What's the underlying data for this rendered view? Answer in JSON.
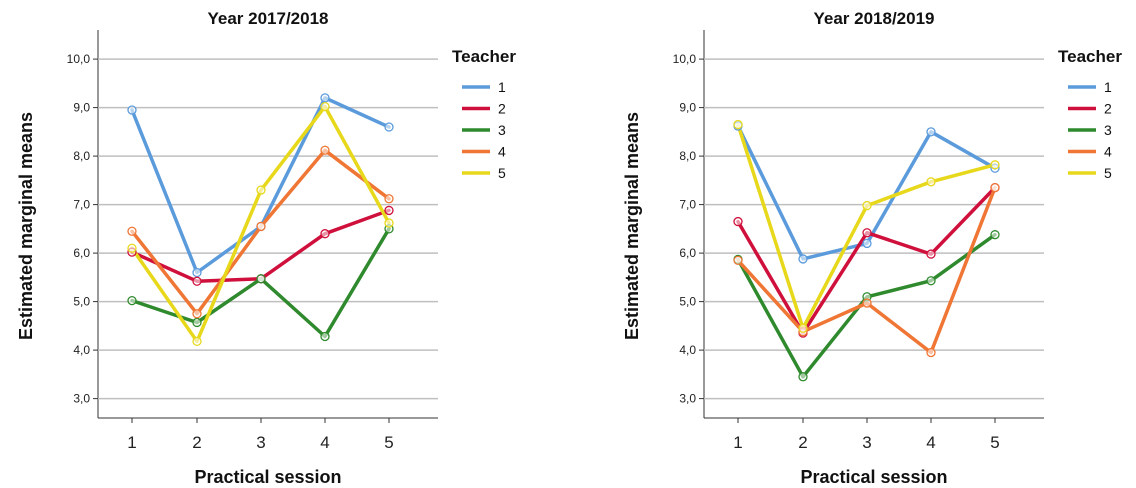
{
  "chart_data": [
    {
      "type": "line",
      "title": "Year 2017/2018",
      "xlabel": "Practical session",
      "ylabel": "Estimated marginal means",
      "x": [
        "1",
        "2",
        "3",
        "4",
        "5"
      ],
      "ylim": [
        2.6,
        10.6
      ],
      "yticks": [
        "3,0",
        "4,0",
        "5,0",
        "6,0",
        "7,0",
        "8,0",
        "9,0",
        "10,0"
      ],
      "grid": "horizontal",
      "legend_title": "Teacher",
      "legend_position": "top-right",
      "series": [
        {
          "name": "1",
          "color": "#5b9bdc",
          "values": [
            8.95,
            5.6,
            6.55,
            9.2,
            8.6
          ]
        },
        {
          "name": "2",
          "color": "#d0103c",
          "values": [
            6.02,
            5.42,
            5.47,
            6.4,
            6.88
          ]
        },
        {
          "name": "3",
          "color": "#2f8a2d",
          "values": [
            5.02,
            4.57,
            5.47,
            4.28,
            6.5
          ]
        },
        {
          "name": "4",
          "color": "#ef7634",
          "values": [
            6.45,
            4.75,
            6.55,
            8.12,
            7.12
          ]
        },
        {
          "name": "5",
          "color": "#e8d81b",
          "values": [
            6.1,
            4.18,
            7.3,
            9.02,
            6.62
          ]
        }
      ]
    },
    {
      "type": "line",
      "title": "Year 2018/2019",
      "xlabel": "Practical session",
      "ylabel": "Estimated marginal means",
      "x": [
        "1",
        "2",
        "3",
        "4",
        "5"
      ],
      "ylim": [
        2.6,
        10.6
      ],
      "yticks": [
        "3,0",
        "4,0",
        "5,0",
        "6,0",
        "7,0",
        "8,0",
        "9,0",
        "10,0"
      ],
      "grid": "horizontal",
      "legend_title": "Teacher",
      "legend_position": "top-right",
      "series": [
        {
          "name": "1",
          "color": "#5b9bdc",
          "values": [
            8.62,
            5.88,
            6.2,
            8.5,
            7.75
          ]
        },
        {
          "name": "2",
          "color": "#d0103c",
          "values": [
            6.65,
            4.35,
            6.42,
            5.98,
            7.35
          ]
        },
        {
          "name": "3",
          "color": "#2f8a2d",
          "values": [
            5.87,
            3.45,
            5.1,
            5.43,
            6.38
          ]
        },
        {
          "name": "4",
          "color": "#ef7634",
          "values": [
            5.85,
            4.38,
            4.97,
            3.95,
            7.35
          ]
        },
        {
          "name": "5",
          "color": "#e8d81b",
          "values": [
            8.65,
            4.45,
            6.98,
            7.47,
            7.82
          ]
        }
      ]
    }
  ]
}
